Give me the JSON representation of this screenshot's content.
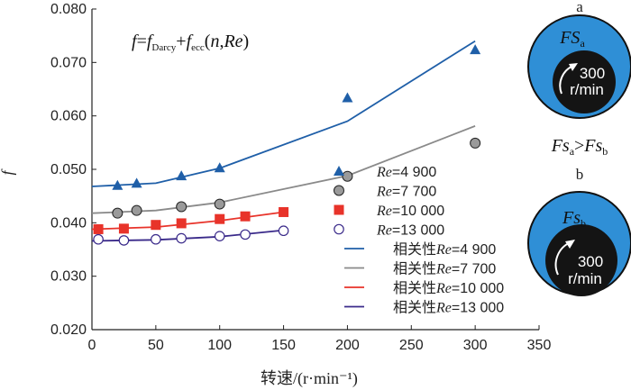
{
  "chart_data": {
    "type": "scatter",
    "xlabel": "转速/(r·min⁻¹)",
    "ylabel": "f",
    "xlim": [
      0,
      350
    ],
    "ylim": [
      0.02,
      0.08
    ],
    "x_ticks": [
      "0",
      "50",
      "100",
      "150",
      "200",
      "250",
      "300",
      "350"
    ],
    "y_ticks": [
      "0.020",
      "0.030",
      "0.040",
      "0.050",
      "0.060",
      "0.070",
      "0.080"
    ],
    "equation": {
      "f": "f",
      "eq": "=",
      "f_darcy_base": "f",
      "darcy_sub": "Darcy",
      "plus": "+",
      "f_ecc_base": "f",
      "ecc_sub": "ecc",
      "args_open": "(",
      "n": "n",
      "comma": ",",
      "re": "Re",
      "args_close": ")"
    },
    "series": [
      {
        "name": "Re=4 900",
        "marker": "triangle",
        "color": "#1f5fa8",
        "x": [
          20,
          35,
          70,
          100,
          200,
          300
        ],
        "y": [
          0.047,
          0.0474,
          0.0488,
          0.0503,
          0.0634,
          0.0724
        ]
      },
      {
        "name": "Re=7 700",
        "marker": "circle-gray",
        "color": "#9a9a9a",
        "x": [
          20,
          35,
          70,
          100,
          200,
          300
        ],
        "y": [
          0.0418,
          0.0423,
          0.043,
          0.0435,
          0.0487,
          0.0549
        ]
      },
      {
        "name": "Re=10 000",
        "marker": "square",
        "color": "#e8332a",
        "x": [
          5,
          25,
          50,
          70,
          100,
          120,
          150
        ],
        "y": [
          0.0388,
          0.0389,
          0.0396,
          0.0399,
          0.0407,
          0.0412,
          0.042
        ]
      },
      {
        "name": "Re=13 000",
        "marker": "circle-open",
        "color": "#3a2a8a",
        "x": [
          5,
          25,
          50,
          70,
          100,
          120,
          150
        ],
        "y": [
          0.0369,
          0.0367,
          0.0369,
          0.0371,
          0.0375,
          0.0378,
          0.0385
        ]
      }
    ],
    "fits": [
      {
        "name": "相关性Re=4 900",
        "color": "#1f5fa8",
        "x": [
          0,
          50,
          100,
          200,
          300
        ],
        "y": [
          0.0468,
          0.0474,
          0.0502,
          0.059,
          0.074
        ]
      },
      {
        "name": "相关性Re=7 700",
        "color": "#8a8a8a",
        "x": [
          0,
          50,
          100,
          200,
          300
        ],
        "y": [
          0.0418,
          0.0423,
          0.0438,
          0.0488,
          0.0581
        ]
      },
      {
        "name": "相关性Re=10 000",
        "color": "#e8332a",
        "x": [
          0,
          50,
          100,
          150
        ],
        "y": [
          0.0388,
          0.0392,
          0.0404,
          0.042
        ]
      },
      {
        "name": "相关性Re=13 000",
        "color": "#3a2a8a",
        "x": [
          0,
          50,
          100,
          150
        ],
        "y": [
          0.0366,
          0.0368,
          0.0374,
          0.0386
        ]
      }
    ],
    "legend": [
      {
        "prefix": "",
        "re": "Re",
        "value": "=4 900",
        "kind": "triangle",
        "color": "#1f5fa8"
      },
      {
        "prefix": "",
        "re": "Re",
        "value": "=7 700",
        "kind": "circle-gray",
        "color": "#9a9a9a"
      },
      {
        "prefix": "",
        "re": "Re",
        "value": "=10 000",
        "kind": "square",
        "color": "#e8332a"
      },
      {
        "prefix": "",
        "re": "Re",
        "value": "=13 000",
        "kind": "circle-open",
        "color": "#3a2a8a"
      },
      {
        "prefix": "相关性",
        "re": "Re",
        "value": "=4 900",
        "kind": "line",
        "color": "#1f5fa8"
      },
      {
        "prefix": "相关性",
        "re": "Re",
        "value": "=7 700",
        "kind": "line",
        "color": "#8a8a8a"
      },
      {
        "prefix": "相关性",
        "re": "Re",
        "value": "=10 000",
        "kind": "line",
        "color": "#e8332a"
      },
      {
        "prefix": "相关性",
        "re": "Re",
        "value": "=13 000",
        "kind": "line",
        "color": "#3a2a8a"
      }
    ],
    "legend_position": "right-lower"
  },
  "panels": {
    "label_a": "a",
    "label_b": "b",
    "fs_a_base": "FS",
    "fs_a_sub": "a",
    "fs_b_base": "Fs",
    "fs_b_sub": "b",
    "speed_value": "300",
    "speed_unit": "r/min",
    "compare_left_base": "Fs",
    "compare_left_sub": "a",
    "compare_op": ">",
    "compare_right_base": "Fs",
    "compare_right_sub": "b",
    "fluid_color": "#2f8fd6",
    "core_color": "#141414"
  }
}
